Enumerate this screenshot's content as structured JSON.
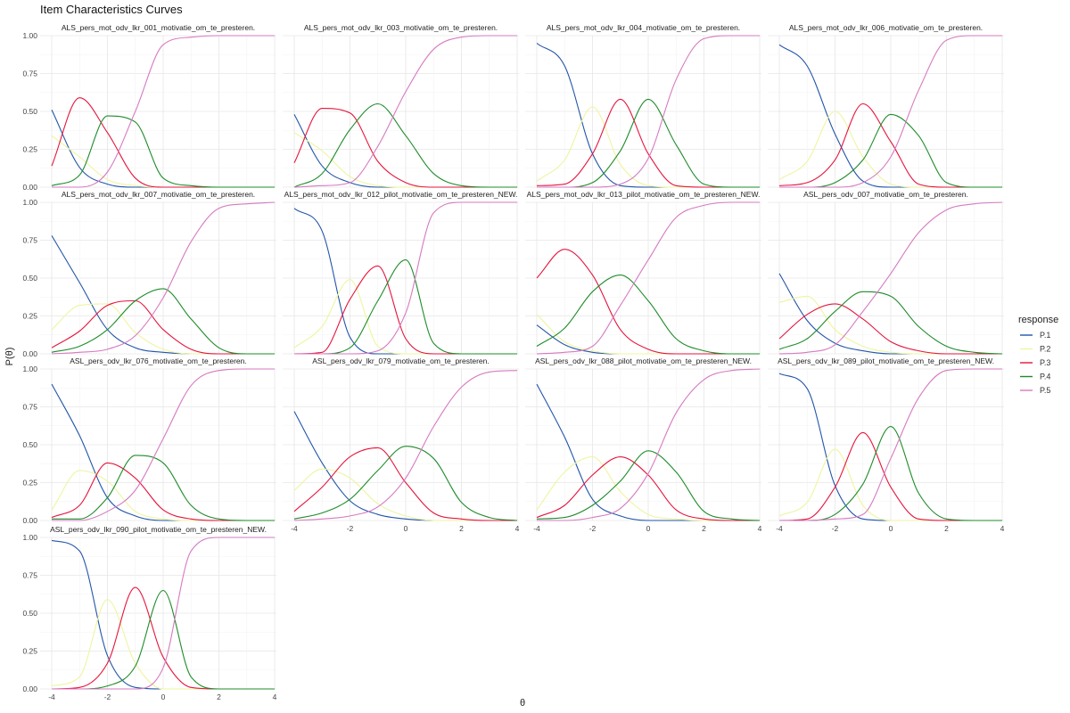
{
  "chart_data": {
    "type": "line",
    "title": "Item Characteristics Curves",
    "xlabel": "θ",
    "ylabel": "P(θ)",
    "xlim": [
      -4,
      4
    ],
    "ylim": [
      0,
      1
    ],
    "x_ticks": [
      -4,
      -2,
      0,
      2,
      4
    ],
    "y_ticks": [
      0,
      0.25,
      0.5,
      0.75,
      1
    ],
    "x_tick_labels": [
      "-4",
      "-2",
      "0",
      "2",
      "4"
    ],
    "y_tick_labels": [
      "0.00",
      "0.25",
      "0.50",
      "0.75",
      "1.00"
    ],
    "grid": true,
    "legend": {
      "title": "response",
      "placement": "right",
      "entries": [
        "P.1",
        "P.2",
        "P.3",
        "P.4",
        "P.5"
      ]
    },
    "series_colors": {
      "P.1": "#2255aa",
      "P.2": "#eef5a0",
      "P.3": "#e6143c",
      "P.4": "#1e8c2a",
      "P.5": "#d67ac0"
    },
    "x_step": 1,
    "panels": [
      {
        "title": "ALS_pers_mot_odv_lkr_001_motivatie_om_te_presteren.",
        "series": {
          "P.1": [
            0.51,
            0.13,
            0.02,
            0,
            0,
            0,
            0,
            0,
            0
          ],
          "P.2": [
            0.34,
            0.2,
            0.05,
            0.01,
            0,
            0,
            0,
            0,
            0
          ],
          "P.3": [
            0.14,
            0.59,
            0.36,
            0.06,
            0,
            0,
            0,
            0,
            0
          ],
          "P.4": [
            0.01,
            0.08,
            0.47,
            0.43,
            0.06,
            0.01,
            0,
            0,
            0
          ],
          "P.5": [
            0,
            0,
            0.1,
            0.5,
            0.94,
            0.99,
            1.0,
            1.0,
            1.0
          ]
        }
      },
      {
        "title": "ALS_pers_mot_odv_lkr_003_motivatie_om_te_presteren.",
        "series": {
          "P.1": [
            0.48,
            0.14,
            0.03,
            0,
            0,
            0,
            0,
            0,
            0
          ],
          "P.2": [
            0.36,
            0.24,
            0.07,
            0.01,
            0,
            0,
            0,
            0,
            0
          ],
          "P.3": [
            0.16,
            0.52,
            0.49,
            0.17,
            0.03,
            0,
            0,
            0,
            0
          ],
          "P.4": [
            0,
            0.09,
            0.38,
            0.55,
            0.34,
            0.09,
            0.01,
            0,
            0
          ],
          "P.5": [
            0,
            0.01,
            0.03,
            0.27,
            0.63,
            0.91,
            0.99,
            1.0,
            1.0
          ]
        }
      },
      {
        "title": "ALS_pers_mot_odv_lkr_004_motivatie_om_te_presteren.",
        "series": {
          "P.1": [
            0.95,
            0.8,
            0.22,
            0.01,
            0,
            0,
            0,
            0,
            0
          ],
          "P.2": [
            0.04,
            0.18,
            0.53,
            0.15,
            0.01,
            0,
            0,
            0,
            0
          ],
          "P.3": [
            0.01,
            0.02,
            0.22,
            0.58,
            0.22,
            0.01,
            0,
            0,
            0
          ],
          "P.4": [
            0,
            0,
            0.03,
            0.24,
            0.58,
            0.28,
            0.02,
            0,
            0
          ],
          "P.5": [
            0,
            0,
            0,
            0.02,
            0.19,
            0.71,
            0.98,
            1.0,
            1.0
          ]
        }
      },
      {
        "title": "ALS_pers_mot_odv_lkr_006_motivatie_om_te_presteren.",
        "series": {
          "P.1": [
            0.94,
            0.8,
            0.35,
            0.04,
            0,
            0,
            0,
            0,
            0
          ],
          "P.2": [
            0.05,
            0.17,
            0.5,
            0.2,
            0.02,
            0,
            0,
            0,
            0
          ],
          "P.3": [
            0.01,
            0.03,
            0.18,
            0.55,
            0.3,
            0.02,
            0,
            0,
            0
          ],
          "P.4": [
            0,
            0,
            0.03,
            0.18,
            0.48,
            0.34,
            0.03,
            0,
            0
          ],
          "P.5": [
            0,
            0,
            0,
            0.03,
            0.2,
            0.64,
            0.97,
            1.0,
            1.0
          ]
        }
      },
      {
        "title": "ALS_pers_mot_odv_lkr_007_motivatie_om_te_presteren.",
        "series": {
          "P.1": [
            0.78,
            0.47,
            0.16,
            0.04,
            0.01,
            0,
            0,
            0,
            0
          ],
          "P.2": [
            0.16,
            0.32,
            0.33,
            0.14,
            0.03,
            0,
            0,
            0,
            0
          ],
          "P.3": [
            0.04,
            0.15,
            0.32,
            0.35,
            0.16,
            0.03,
            0,
            0,
            0
          ],
          "P.4": [
            0.01,
            0.05,
            0.16,
            0.35,
            0.43,
            0.23,
            0.04,
            0,
            0
          ],
          "P.5": [
            0,
            0.01,
            0.03,
            0.12,
            0.37,
            0.74,
            0.96,
            0.99,
            1.0
          ]
        }
      },
      {
        "title": "ALS_pers_mot_odv_lkr_012_pilot_motivatie_om_te_presteren_NEW.",
        "series": {
          "P.1": [
            0.96,
            0.81,
            0.11,
            0,
            0,
            0,
            0,
            0,
            0
          ],
          "P.2": [
            0.04,
            0.18,
            0.49,
            0.05,
            0,
            0,
            0,
            0,
            0
          ],
          "P.3": [
            0,
            0.01,
            0.36,
            0.58,
            0.1,
            0,
            0,
            0,
            0
          ],
          "P.4": [
            0,
            0,
            0.04,
            0.35,
            0.62,
            0.07,
            0,
            0,
            0
          ],
          "P.5": [
            0,
            0,
            0,
            0.02,
            0.27,
            0.93,
            1.0,
            1.0,
            1.0
          ]
        }
      },
      {
        "title": "ALS_pers_mot_odv_lkr_013_pilot_motivatie_om_te_presteren_NEW.",
        "series": {
          "P.1": [
            0.19,
            0.06,
            0.01,
            0,
            0,
            0,
            0,
            0,
            0
          ],
          "P.2": [
            0.26,
            0.08,
            0.02,
            0,
            0,
            0,
            0,
            0,
            0
          ],
          "P.3": [
            0.5,
            0.69,
            0.52,
            0.16,
            0.03,
            0,
            0,
            0,
            0
          ],
          "P.4": [
            0.05,
            0.17,
            0.41,
            0.52,
            0.35,
            0.1,
            0.02,
            0,
            0
          ],
          "P.5": [
            0,
            0.01,
            0.05,
            0.32,
            0.62,
            0.9,
            0.98,
            1.0,
            1.0
          ]
        }
      },
      {
        "title": "ASL_pers_odv_007_motivatie_om_te_presteren.",
        "series": {
          "P.1": [
            0.53,
            0.22,
            0.07,
            0.02,
            0,
            0,
            0,
            0,
            0
          ],
          "P.2": [
            0.34,
            0.38,
            0.16,
            0.05,
            0.01,
            0,
            0,
            0,
            0
          ],
          "P.3": [
            0.1,
            0.26,
            0.33,
            0.23,
            0.08,
            0.02,
            0,
            0,
            0
          ],
          "P.4": [
            0.03,
            0.1,
            0.28,
            0.41,
            0.38,
            0.18,
            0.05,
            0.01,
            0
          ],
          "P.5": [
            0,
            0.01,
            0.06,
            0.28,
            0.53,
            0.8,
            0.95,
            0.99,
            1.0
          ]
        }
      },
      {
        "title": "ASL_pers_odv_lkr_076_motivatie_om_te_presteren.",
        "series": {
          "P.1": [
            0.9,
            0.56,
            0.15,
            0.03,
            0,
            0,
            0,
            0,
            0
          ],
          "P.2": [
            0.07,
            0.33,
            0.26,
            0.06,
            0.01,
            0,
            0,
            0,
            0
          ],
          "P.3": [
            0.02,
            0.1,
            0.38,
            0.28,
            0.07,
            0.01,
            0,
            0,
            0
          ],
          "P.4": [
            0.01,
            0.01,
            0.15,
            0.43,
            0.38,
            0.1,
            0.01,
            0,
            0
          ],
          "P.5": [
            0,
            0,
            0.06,
            0.2,
            0.54,
            0.89,
            0.99,
            1.0,
            1.0
          ]
        }
      },
      {
        "title": "ASL_pers_odv_lkr_079_motivatie_om_te_presteren.",
        "series": {
          "P.1": [
            0.72,
            0.38,
            0.13,
            0.04,
            0.01,
            0,
            0,
            0,
            0
          ],
          "P.2": [
            0.2,
            0.34,
            0.28,
            0.11,
            0.03,
            0,
            0,
            0,
            0
          ],
          "P.3": [
            0.06,
            0.22,
            0.42,
            0.48,
            0.25,
            0.05,
            0.01,
            0,
            0
          ],
          "P.4": [
            0.01,
            0.05,
            0.14,
            0.33,
            0.49,
            0.41,
            0.12,
            0.02,
            0
          ],
          "P.5": [
            0,
            0.01,
            0.03,
            0.09,
            0.28,
            0.62,
            0.88,
            0.98,
            0.99
          ]
        }
      },
      {
        "title": "ASL_pers_odv_lkr_088_pilot_motivatie_om_te_presteren_NEW.",
        "series": {
          "P.1": [
            0.9,
            0.55,
            0.14,
            0.03,
            0,
            0,
            0,
            0,
            0
          ],
          "P.2": [
            0.07,
            0.32,
            0.42,
            0.19,
            0.04,
            0.01,
            0,
            0,
            0
          ],
          "P.3": [
            0.02,
            0.1,
            0.3,
            0.42,
            0.3,
            0.07,
            0.01,
            0,
            0
          ],
          "P.4": [
            0.01,
            0.02,
            0.1,
            0.26,
            0.46,
            0.32,
            0.06,
            0.01,
            0
          ],
          "P.5": [
            0,
            0,
            0.02,
            0.08,
            0.31,
            0.71,
            0.93,
            0.99,
            1.0
          ]
        }
      },
      {
        "title": "ASL_pers_odv_lkr_089_pilot_motivatie_om_te_presteren_NEW.",
        "series": {
          "P.1": [
            0.97,
            0.87,
            0.23,
            0.01,
            0,
            0,
            0,
            0,
            0
          ],
          "P.2": [
            0.03,
            0.12,
            0.47,
            0.1,
            0,
            0,
            0,
            0,
            0
          ],
          "P.3": [
            0,
            0.01,
            0.22,
            0.58,
            0.22,
            0.01,
            0,
            0,
            0
          ],
          "P.4": [
            0,
            0,
            0.04,
            0.24,
            0.62,
            0.18,
            0.01,
            0,
            0
          ],
          "P.5": [
            0,
            0,
            0.01,
            0.04,
            0.41,
            0.81,
            0.99,
            1.0,
            1.0
          ]
        }
      },
      {
        "title": "ASL_pers_odv_lkr_090_pilot_motivatie_om_te_presteren_NEW.",
        "series": {
          "P.1": [
            0.98,
            0.91,
            0.22,
            0.01,
            0,
            0,
            0,
            0,
            0
          ],
          "P.2": [
            0.02,
            0.08,
            0.59,
            0.17,
            0,
            0,
            0,
            0,
            0
          ],
          "P.3": [
            0,
            0.01,
            0.17,
            0.67,
            0.21,
            0.01,
            0,
            0,
            0
          ],
          "P.4": [
            0,
            0,
            0.02,
            0.15,
            0.65,
            0.08,
            0,
            0,
            0
          ],
          "P.5": [
            0,
            0,
            0,
            0,
            0.14,
            0.91,
            1.0,
            1.0,
            1.0
          ]
        }
      }
    ]
  }
}
